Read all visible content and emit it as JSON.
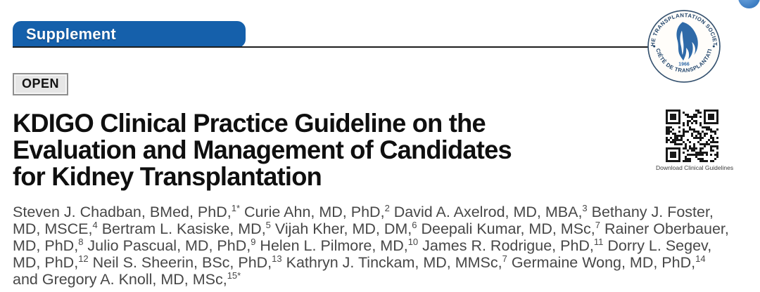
{
  "banner": {
    "label": "Supplement"
  },
  "open_badge": {
    "label": "OPEN"
  },
  "title": {
    "full": "KDIGO Clinical Practice Guideline on the Evaluation and Management of Candidates for Kidney Transplantation",
    "line1": "KDIGO Clinical Practice Guideline on the",
    "line2": "Evaluation and Management of Candidates",
    "line3": "for Kidney Transplantation"
  },
  "society_seal": {
    "top_text": "THE TRANSPLANTATION SOCIETY",
    "bottom_text": "SOCIÉTÉ DE TRANSPLANTATION",
    "year": "1966"
  },
  "qr": {
    "caption": "Download Clinical Guidelines"
  },
  "authors": {
    "lines": [
      [
        {
          "t": "Steven J. Chadban, BMed, PhD,",
          "sup": "1*"
        },
        {
          "t": " Curie Ahn, MD, PhD,",
          "sup": "2"
        },
        {
          "t": " David A. Axelrod, MD, MBA,",
          "sup": "3"
        },
        {
          "t": " Bethany J. Foster,"
        }
      ],
      [
        {
          "t": "MD, MSCE,",
          "sup": "4"
        },
        {
          "t": " Bertram L. Kasiske, MD,",
          "sup": "5"
        },
        {
          "t": " Vijah Kher, MD, DM,",
          "sup": "6"
        },
        {
          "t": " Deepali Kumar, MD, MSc,",
          "sup": "7"
        },
        {
          "t": " Rainer Oberbauer,"
        }
      ],
      [
        {
          "t": "MD, PhD,",
          "sup": "8"
        },
        {
          "t": " Julio Pascual, MD, PhD,",
          "sup": "9"
        },
        {
          "t": " Helen L. Pilmore, MD,",
          "sup": "10"
        },
        {
          "t": " James R. Rodrigue, PhD,",
          "sup": "11"
        },
        {
          "t": " Dorry L. Segev,"
        }
      ],
      [
        {
          "t": "MD, PhD,",
          "sup": "12"
        },
        {
          "t": " Neil S. Sheerin, BSc, PhD,",
          "sup": "13"
        },
        {
          "t": " Kathryn J. Tinckam, MD, MMSc,",
          "sup": "7"
        },
        {
          "t": " Germaine Wong, MD, PhD,",
          "sup": "14"
        }
      ],
      [
        {
          "t": "and Gregory A. Knoll, MD, MSc,",
          "sup": "15*"
        }
      ]
    ]
  },
  "colors": {
    "banner_blue": "#1560ab",
    "seal_blue": "#2f6aa8",
    "seal_navy": "#22456b",
    "title_black": "#0f0f0f",
    "author_gray": "#474747",
    "qr_black": "#181818"
  }
}
